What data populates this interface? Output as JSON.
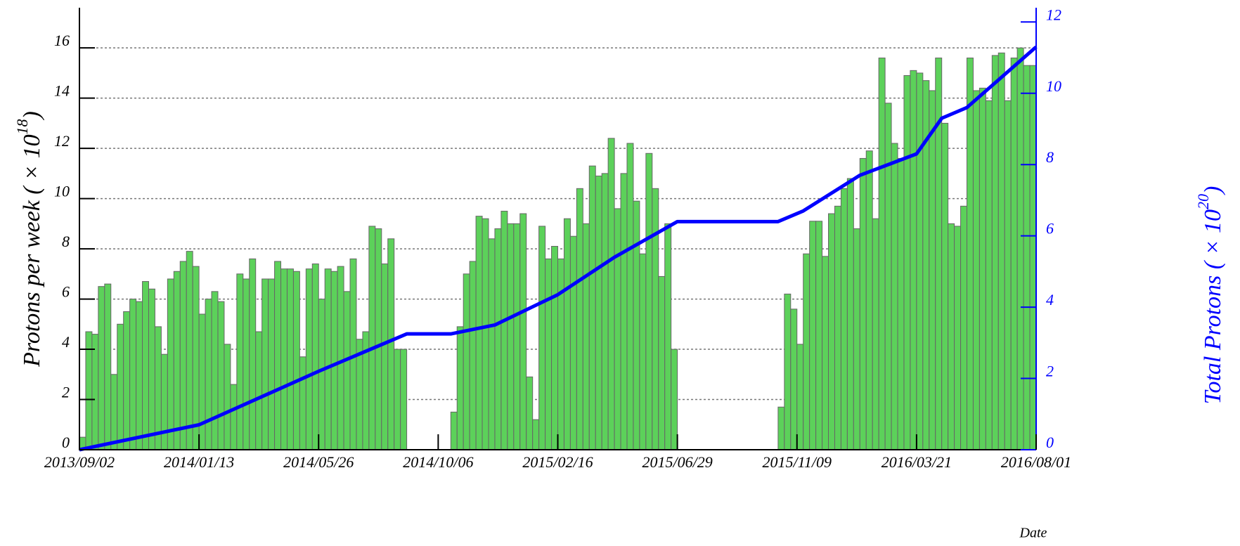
{
  "chart_data": {
    "type": "histogram",
    "xlabel": "Date",
    "ylabel": {
      "text": "Protons per week ( × 10",
      "sup": "18",
      "end": ")"
    },
    "y2label": {
      "text": "Total Protons ( × 10",
      "sup": "20",
      "end": ")"
    },
    "bins": [
      0,
      1,
      2,
      3,
      4,
      5,
      6,
      7,
      8,
      9,
      10,
      11,
      12,
      13,
      14,
      15,
      16,
      17,
      18,
      19,
      20,
      21,
      22,
      23,
      24,
      25,
      26,
      27,
      28,
      29,
      30,
      31,
      32,
      33,
      34,
      35,
      36,
      37,
      38,
      39,
      40,
      41,
      42,
      43,
      44,
      45,
      46,
      47,
      48,
      49,
      50,
      51,
      52,
      53,
      54,
      55,
      56,
      57,
      58,
      59,
      60,
      61,
      62,
      63,
      64,
      65,
      66,
      67,
      68,
      69,
      70,
      71,
      72,
      73,
      74,
      75,
      76,
      77,
      78,
      79,
      80,
      81,
      82,
      83,
      84,
      85,
      86,
      87,
      88,
      89,
      90,
      91,
      92,
      93,
      94,
      95,
      96,
      97,
      98,
      99,
      100,
      101,
      102,
      103,
      104,
      105,
      106,
      107,
      108,
      109,
      110,
      111,
      112,
      113,
      114,
      115,
      116,
      117,
      118,
      119,
      120,
      121,
      122,
      123,
      124,
      125,
      126,
      127,
      128,
      129,
      130,
      131,
      132,
      133,
      134,
      135,
      136,
      137,
      138,
      139,
      140,
      141,
      142,
      143,
      144,
      145,
      146,
      147,
      148,
      149,
      150,
      151,
      152
    ],
    "values": [
      0.5,
      4.7,
      4.6,
      6.5,
      6.6,
      3.0,
      5.0,
      5.5,
      6.0,
      5.9,
      6.7,
      6.4,
      4.9,
      3.8,
      6.8,
      7.1,
      7.5,
      7.9,
      7.3,
      5.4,
      6.0,
      6.3,
      5.9,
      4.2,
      2.6,
      7.0,
      6.8,
      7.6,
      4.7,
      6.8,
      6.8,
      7.5,
      7.2,
      7.2,
      7.1,
      3.7,
      7.2,
      7.4,
      6.0,
      7.2,
      7.1,
      7.3,
      6.3,
      7.6,
      4.4,
      4.7,
      8.9,
      8.8,
      7.4,
      8.4,
      4.0,
      4.0,
      0,
      0,
      0,
      0,
      0,
      0,
      0,
      1.5,
      4.9,
      7.0,
      7.5,
      9.3,
      9.2,
      8.4,
      8.8,
      9.5,
      9.0,
      9.0,
      9.4,
      2.9,
      1.2,
      8.9,
      7.6,
      8.1,
      7.6,
      9.2,
      8.5,
      10.4,
      9.0,
      11.3,
      10.9,
      11.0,
      12.4,
      9.6,
      11.0,
      12.2,
      9.9,
      7.8,
      11.8,
      10.4,
      6.9,
      9.0,
      4.0,
      0,
      0,
      0,
      0,
      0,
      0,
      0,
      0,
      0,
      0,
      0,
      0,
      0,
      0,
      0,
      0,
      1.7,
      6.2,
      5.6,
      4.2,
      7.8,
      9.1,
      9.1,
      7.7,
      9.4,
      9.7,
      10.4,
      10.8,
      8.8,
      11.6,
      11.9,
      9.2,
      15.6,
      13.8,
      12.2,
      11.6,
      14.9,
      15.1,
      15.0,
      14.7,
      14.3,
      15.6,
      13.0,
      9.0,
      8.9,
      9.7,
      15.6,
      14.3,
      14.4,
      13.9,
      15.7,
      15.8,
      13.9,
      15.6,
      16.0,
      15.3,
      15.3
    ],
    "color": "#5cd15a",
    "edge_color": "#666666",
    "series": [
      {
        "type": "line",
        "axis": "y2",
        "color": "#0000ff",
        "x": [
          0,
          19,
          38,
          52,
          59,
          66,
          76,
          85,
          95,
          111,
          115,
          124,
          133,
          137,
          141,
          152
        ],
        "values": [
          0,
          0.7,
          2.2,
          3.25,
          3.25,
          3.5,
          4.35,
          5.4,
          6.4,
          6.4,
          6.7,
          7.7,
          8.3,
          9.3,
          9.6,
          11.3
        ]
      }
    ],
    "xlim": [
      0,
      152
    ],
    "xticks": [
      {
        "value": 0,
        "label": "2013/09/02"
      },
      {
        "value": 19,
        "label": "2014/01/13"
      },
      {
        "value": 38,
        "label": "2014/05/26"
      },
      {
        "value": 57,
        "label": "2014/10/06"
      },
      {
        "value": 76,
        "label": "2015/02/16"
      },
      {
        "value": 95,
        "label": "2015/06/29"
      },
      {
        "value": 114,
        "label": "2015/11/09"
      },
      {
        "value": 133,
        "label": "2016/03/21"
      },
      {
        "value": 152,
        "label": "2016/08/01"
      }
    ],
    "ylim": [
      0,
      17.6
    ],
    "yticks": [
      0,
      2,
      4,
      6,
      8,
      10,
      12,
      14,
      16
    ],
    "y2lim": [
      0,
      12.4
    ],
    "y2ticks": [
      0,
      2,
      4,
      6,
      8,
      10,
      12
    ],
    "y2color": "#0000ff",
    "grid": true
  }
}
